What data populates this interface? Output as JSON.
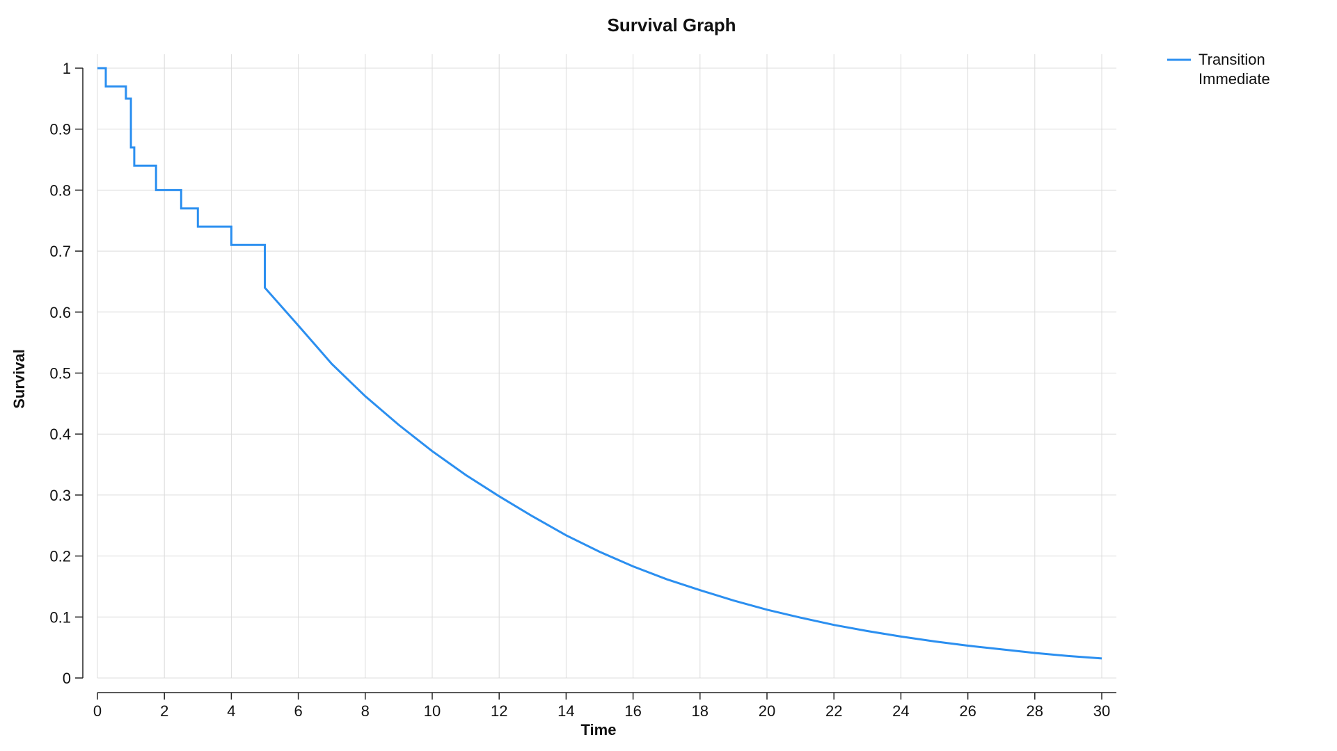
{
  "chart_data": {
    "type": "line",
    "title": "Survival Graph",
    "xlabel": "Time",
    "ylabel": "Survival",
    "xlim": [
      0,
      30
    ],
    "ylim": [
      0,
      1
    ],
    "xticks": [
      0,
      2,
      4,
      6,
      8,
      10,
      12,
      14,
      16,
      18,
      20,
      22,
      24,
      26,
      28,
      30
    ],
    "xtick_labels": [
      "0",
      "2",
      "4",
      "6",
      "8",
      "10",
      "12",
      "14",
      "16",
      "18",
      "20",
      "22",
      "24",
      "26",
      "28",
      "30"
    ],
    "yticks": [
      0,
      0.1,
      0.2,
      0.3,
      0.4,
      0.5,
      0.6,
      0.7,
      0.8,
      0.9,
      1
    ],
    "ytick_labels": [
      "0",
      "0.1",
      "0.2",
      "0.3",
      "0.4",
      "0.5",
      "0.6",
      "0.7",
      "0.8",
      "0.9",
      "1"
    ],
    "grid": true,
    "legend_position": "top-right, outside plot",
    "series": [
      {
        "name": "Transition Immediate",
        "legend_lines": [
          "Transition",
          "Immediate"
        ],
        "color": "#2b8ff0",
        "x": [
          0,
          0.25,
          0.25,
          0.85,
          0.85,
          1.0,
          1.0,
          1.1,
          1.1,
          1.3,
          1.3,
          1.75,
          1.75,
          2.5,
          2.5,
          3.0,
          3.0,
          4.0,
          4.0,
          5.0,
          5.0,
          6,
          7,
          8,
          9,
          10,
          11,
          12,
          13,
          14,
          15,
          16,
          17,
          18,
          19,
          20,
          21,
          22,
          23,
          24,
          25,
          26,
          27,
          28,
          29,
          30
        ],
        "y": [
          1.0,
          1.0,
          0.97,
          0.97,
          0.95,
          0.95,
          0.87,
          0.87,
          0.84,
          0.84,
          0.84,
          0.84,
          0.8,
          0.8,
          0.77,
          0.77,
          0.74,
          0.74,
          0.71,
          0.71,
          0.64,
          0.578,
          0.515,
          0.462,
          0.415,
          0.372,
          0.333,
          0.298,
          0.265,
          0.234,
          0.207,
          0.183,
          0.162,
          0.144,
          0.127,
          0.112,
          0.099,
          0.087,
          0.077,
          0.068,
          0.06,
          0.053,
          0.047,
          0.041,
          0.036,
          0.032
        ]
      }
    ]
  }
}
